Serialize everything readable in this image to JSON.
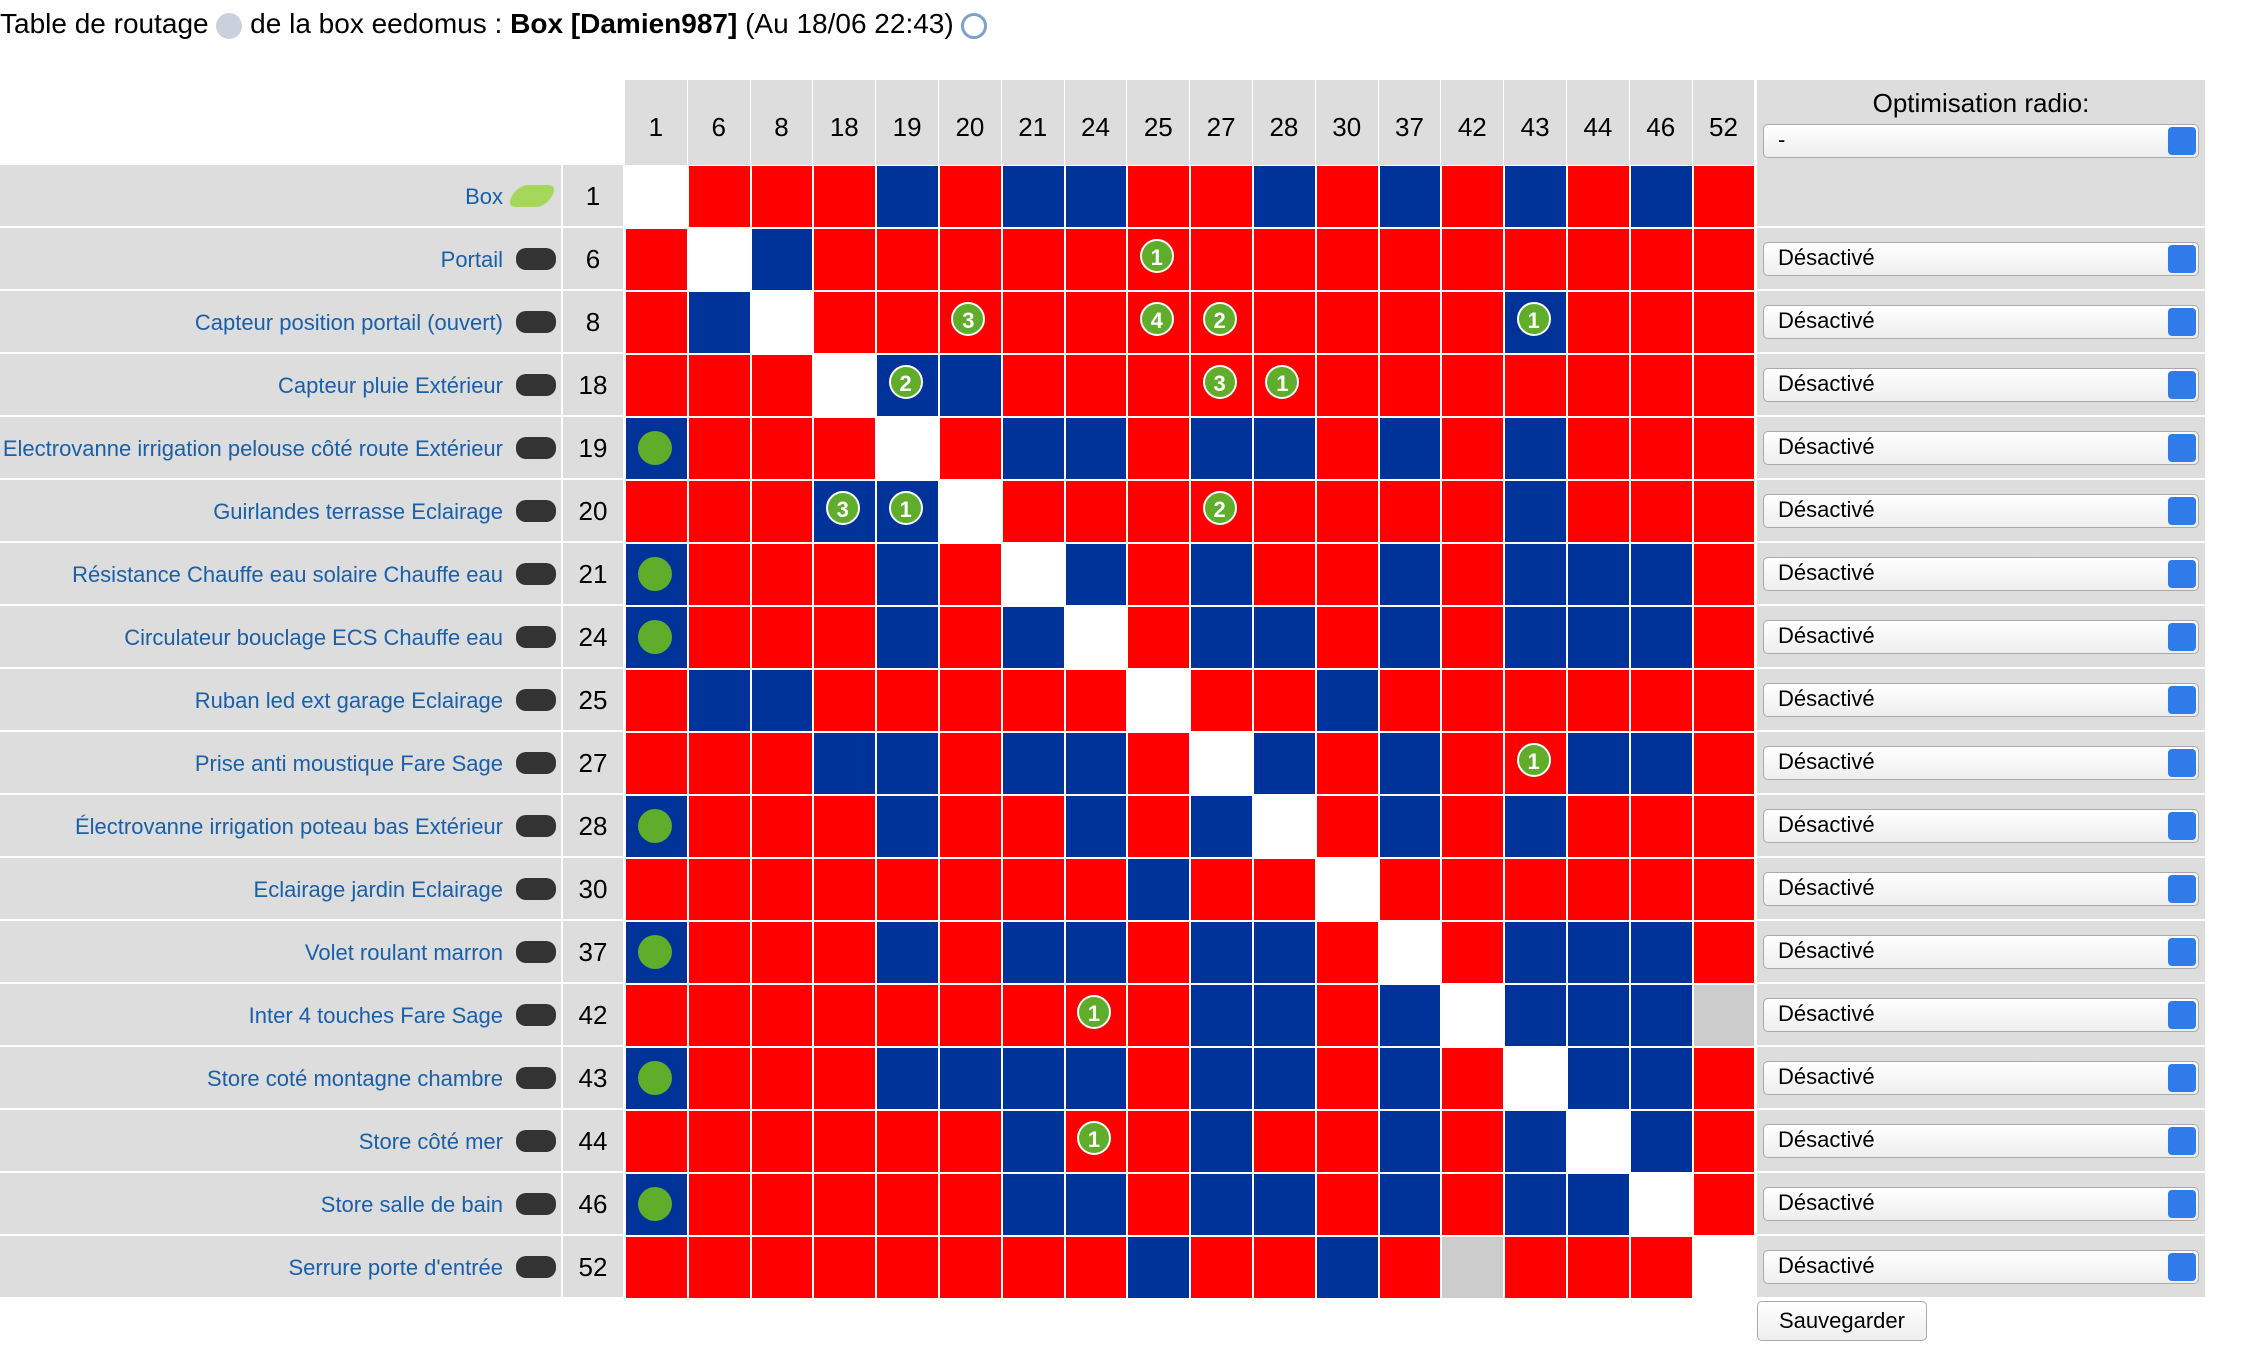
{
  "header": {
    "title_prefix": "Table de routage",
    "title_middle": "de la box eedomus :",
    "title_box": "Box [Damien987]",
    "title_date": "(Au 18/06 22:43)"
  },
  "table": {
    "columns": [
      1,
      6,
      8,
      18,
      19,
      20,
      21,
      24,
      25,
      27,
      28,
      30,
      37,
      42,
      43,
      44,
      46,
      52
    ],
    "radio_header": "Optimisation radio:",
    "radio_default": "-",
    "cell_colors": {
      "R": "#ff0000",
      "B": "#003399",
      "W": "#ffffff",
      "G": "#cccccc",
      "D": "#003399"
    },
    "rows": [
      {
        "label": "Box",
        "id": 1,
        "cells": "WRRRBRBBRRBRBRBRBR",
        "badges": []
      },
      {
        "label": "Portail",
        "id": 6,
        "cells": "RWBRRRRRRRRRRRRRRR",
        "badges": [
          {
            "col": 8,
            "value": 1
          }
        ],
        "radio": "Désactivé"
      },
      {
        "label": "Capteur position portail (ouvert)",
        "id": 8,
        "cells": "RBWRRRRRRRRRRRBRRR",
        "badges": [
          {
            "col": 5,
            "value": 3
          },
          {
            "col": 8,
            "value": 4
          },
          {
            "col": 9,
            "value": 2
          },
          {
            "col": 14,
            "value": 1
          }
        ],
        "radio": "Désactivé"
      },
      {
        "label": "Capteur pluie Extérieur",
        "id": 18,
        "cells": "RRRWBBRRRRRRRRRRRR",
        "badges": [
          {
            "col": 4,
            "value": 2
          },
          {
            "col": 9,
            "value": 3
          },
          {
            "col": 10,
            "value": 1
          }
        ],
        "radio": "Désactivé"
      },
      {
        "label": "Electrovanne irrigation pelouse côté route Extérieur",
        "id": 19,
        "cells": "DRRRWRBBRBBRBRBRRR",
        "badges": [],
        "radio": "Désactivé"
      },
      {
        "label": "Guirlandes terrasse Eclairage",
        "id": 20,
        "cells": "RRRBBWRRRRRRRRBRRR",
        "badges": [
          {
            "col": 3,
            "value": 3
          },
          {
            "col": 4,
            "value": 1
          },
          {
            "col": 9,
            "value": 2
          }
        ],
        "radio": "Désactivé"
      },
      {
        "label": "Résistance Chauffe eau solaire Chauffe eau",
        "id": 21,
        "cells": "DRRRBRWBRBRRBRBBBR",
        "badges": [],
        "radio": "Désactivé"
      },
      {
        "label": "Circulateur bouclage ECS Chauffe eau",
        "id": 24,
        "cells": "DRRRBRBWRBBRBRBBBR",
        "badges": [],
        "radio": "Désactivé"
      },
      {
        "label": "Ruban led ext garage Eclairage",
        "id": 25,
        "cells": "RBBRRRRRWRRBRRRRRR",
        "badges": [],
        "radio": "Désactivé"
      },
      {
        "label": "Prise anti moustique Fare Sage",
        "id": 27,
        "cells": "RRRBBRBBRWBRBRRBBR",
        "badges": [
          {
            "col": 14,
            "value": 1
          }
        ],
        "radio": "Désactivé"
      },
      {
        "label": "Électrovanne irrigation poteau bas Extérieur",
        "id": 28,
        "cells": "DRRRBRRBRBWRBRBRRR",
        "badges": [],
        "radio": "Désactivé"
      },
      {
        "label": "Eclairage jardin Eclairage",
        "id": 30,
        "cells": "RRRRRRRRBRRWRRRRRR",
        "badges": [],
        "radio": "Désactivé"
      },
      {
        "label": "Volet roulant marron",
        "id": 37,
        "cells": "DRRRBRBBRBBRWRBBBR",
        "badges": [],
        "radio": "Désactivé"
      },
      {
        "label": "Inter 4 touches Fare Sage",
        "id": 42,
        "cells": "RRRRRRRRRBBRBWBBBG",
        "badges": [
          {
            "col": 7,
            "value": 1
          }
        ],
        "radio": "Désactivé"
      },
      {
        "label": "Store coté montagne chambre",
        "id": 43,
        "cells": "DRRRBBBBRBBRBRWBBR",
        "badges": [],
        "radio": "Désactivé"
      },
      {
        "label": "Store côté mer",
        "id": 44,
        "cells": "RRRRRRBRRBRRBRBWBR",
        "badges": [
          {
            "col": 7,
            "value": 1
          }
        ],
        "radio": "Désactivé"
      },
      {
        "label": "Store salle de bain",
        "id": 46,
        "cells": "DRRRRRBBRBBRBRBBWR",
        "badges": [],
        "radio": "Désactivé"
      },
      {
        "label": "Serrure porte d'entrée",
        "id": 52,
        "cells": "RRRRRRRRBRRBRGRRRW",
        "badges": [],
        "radio": "Désactivé"
      }
    ]
  },
  "save_button": "Sauvegarder"
}
